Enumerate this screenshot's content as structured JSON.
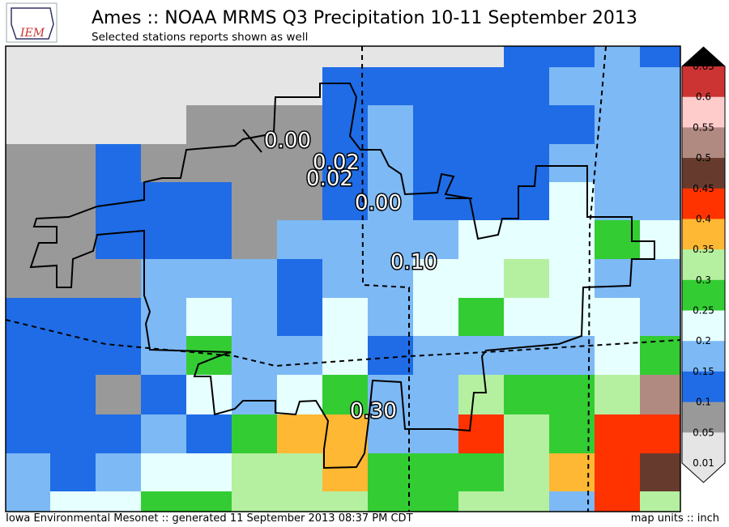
{
  "header": {
    "title": "Ames :: NOAA MRMS Q3 Precipitation 10-11 September 2013",
    "subtitle": "Selected stations reports shown as well",
    "logo": "IEM"
  },
  "stations": [
    {
      "label": "0.00"
    },
    {
      "label": "0.02"
    },
    {
      "label": "0.02"
    },
    {
      "label": "0.00"
    },
    {
      "label": "0.10"
    },
    {
      "label": "0.30"
    }
  ],
  "colorbar": {
    "labels": [
      "0.65",
      "0.6",
      "0.55",
      "0.5",
      "0.45",
      "0.4",
      "0.35",
      "0.3",
      "0.25",
      "0.2",
      "0.15",
      "0.1",
      "0.05",
      "0.01"
    ]
  },
  "footer": {
    "left": "Iowa Environmental Mesonet :: generated 11 September 2013 08:37 PM CDT",
    "right": "map units :: inch"
  }
}
